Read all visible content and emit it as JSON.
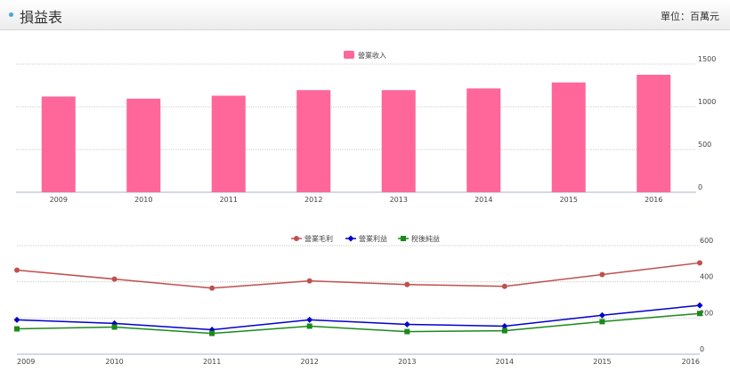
{
  "header": {
    "title": "損益表",
    "unit": "單位：百萬元"
  },
  "colors": {
    "bar": "#ff6699",
    "grid": "#cccccc",
    "axis": "#a8b3cc",
    "text": "#444444",
    "gross_profit": "#c0504d",
    "operating_income": "#0000cc",
    "net_income": "#1a8a1a"
  },
  "chart_data": [
    {
      "type": "bar",
      "categories": [
        "2009",
        "2010",
        "2011",
        "2012",
        "2013",
        "2014",
        "2015",
        "2016"
      ],
      "series": [
        {
          "name": "營業收入",
          "values": [
            1120,
            1095,
            1130,
            1195,
            1195,
            1215,
            1285,
            1375
          ]
        }
      ],
      "yticks": [
        "0",
        "500",
        "1000",
        "1500"
      ],
      "ylim": [
        0,
        1500
      ],
      "grid": true,
      "legend": "top-center"
    },
    {
      "type": "line",
      "categories": [
        "2009",
        "2010",
        "2011",
        "2012",
        "2013",
        "2014",
        "2015",
        "2016"
      ],
      "series": [
        {
          "name": "營業毛利",
          "values": [
            465,
            415,
            365,
            405,
            385,
            375,
            440,
            505
          ]
        },
        {
          "name": "營業利益",
          "values": [
            190,
            170,
            135,
            190,
            165,
            155,
            215,
            270
          ]
        },
        {
          "name": "稅後純益",
          "values": [
            140,
            150,
            115,
            155,
            125,
            130,
            180,
            225
          ]
        }
      ],
      "yticks": [
        "0",
        "200",
        "400",
        "600"
      ],
      "ylim": [
        0,
        600
      ],
      "grid": true,
      "legend": "top-center"
    }
  ]
}
